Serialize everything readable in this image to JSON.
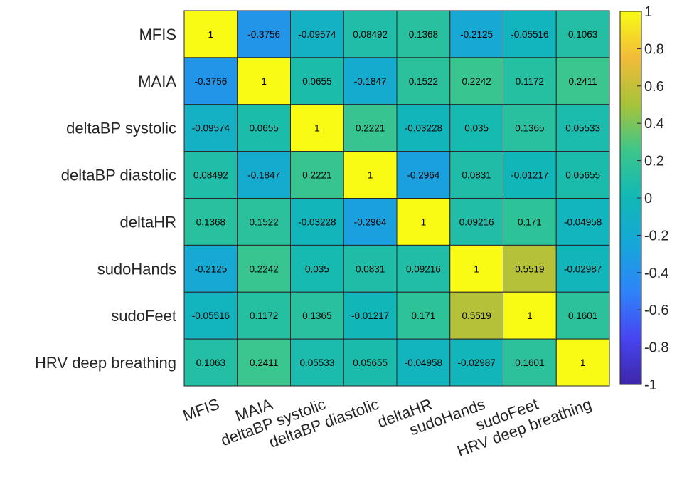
{
  "chart_data": {
    "type": "heatmap",
    "title": "",
    "xlabel": "",
    "ylabel": "",
    "variables": [
      "MFIS",
      "MAIA",
      "deltaBP systolic",
      "deltaBP diastolic",
      "deltaHR",
      "sudoHands",
      "sudoFeet",
      "HRV deep breathing"
    ],
    "x_labels": [
      "MFIS",
      "MAIA",
      "deltaBP systolic",
      "deltaBP diastolic",
      "deltaHR",
      "sudoHands",
      "sudoFeet",
      "HRV deep breathing"
    ],
    "y_labels": [
      "MFIS",
      "MAIA",
      "deltaBP systolic",
      "deltaBP diastolic",
      "deltaHR",
      "sudoHands",
      "sudoFeet",
      "HRV deep breathing"
    ],
    "values": [
      [
        1,
        -0.3756,
        -0.09574,
        0.08492,
        0.1368,
        -0.2125,
        -0.05516,
        0.1063
      ],
      [
        -0.3756,
        1,
        0.0655,
        -0.1847,
        0.1522,
        0.2242,
        0.1172,
        0.2411
      ],
      [
        -0.09574,
        0.0655,
        1,
        0.2221,
        -0.03228,
        0.035,
        0.1365,
        0.05533
      ],
      [
        0.08492,
        -0.1847,
        0.2221,
        1,
        -0.2964,
        0.0831,
        -0.01217,
        0.05655
      ],
      [
        0.1368,
        0.1522,
        -0.03228,
        -0.2964,
        1,
        0.09216,
        0.171,
        -0.04958
      ],
      [
        -0.2125,
        0.2242,
        0.035,
        0.0831,
        0.09216,
        1,
        0.5519,
        -0.02987
      ],
      [
        -0.05516,
        0.1172,
        0.1365,
        -0.01217,
        0.171,
        0.5519,
        1,
        0.1601
      ],
      [
        0.1063,
        0.2411,
        0.05533,
        0.05655,
        -0.04958,
        -0.02987,
        0.1601,
        1
      ]
    ],
    "value_labels": [
      [
        "1",
        "-0.3756",
        "-0.09574",
        "0.08492",
        "0.1368",
        "-0.2125",
        "-0.05516",
        "0.1063"
      ],
      [
        "-0.3756",
        "1",
        "0.0655",
        "-0.1847",
        "0.1522",
        "0.2242",
        "0.1172",
        "0.2411"
      ],
      [
        "-0.09574",
        "0.0655",
        "1",
        "0.2221",
        "-0.03228",
        "0.035",
        "0.1365",
        "0.05533"
      ],
      [
        "0.08492",
        "-0.1847",
        "0.2221",
        "1",
        "-0.2964",
        "0.0831",
        "-0.01217",
        "0.05655"
      ],
      [
        "0.1368",
        "0.1522",
        "-0.03228",
        "-0.2964",
        "1",
        "0.09216",
        "0.171",
        "-0.04958"
      ],
      [
        "-0.2125",
        "0.2242",
        "0.035",
        "0.0831",
        "0.09216",
        "1",
        "0.5519",
        "-0.02987"
      ],
      [
        "-0.05516",
        "0.1172",
        "0.1365",
        "-0.01217",
        "0.171",
        "0.5519",
        "1",
        "0.1601"
      ],
      [
        "0.1063",
        "0.2411",
        "0.05533",
        "0.05655",
        "-0.04958",
        "-0.02987",
        "0.1601",
        "1"
      ]
    ],
    "color_range": [
      -1,
      1
    ],
    "colormap": "parula",
    "colorbar": {
      "placement": "right",
      "ticks": [
        1,
        0.8,
        0.6,
        0.4,
        0.2,
        0,
        -0.2,
        -0.4,
        -0.6,
        -0.8,
        -1
      ],
      "tick_labels": [
        "1",
        "0.8",
        "0.6",
        "0.4",
        "0.2",
        "0",
        "-0.2",
        "-0.4",
        "-0.6",
        "-0.8",
        "-1"
      ]
    },
    "x_label_rotation": "angled",
    "grid": true
  }
}
